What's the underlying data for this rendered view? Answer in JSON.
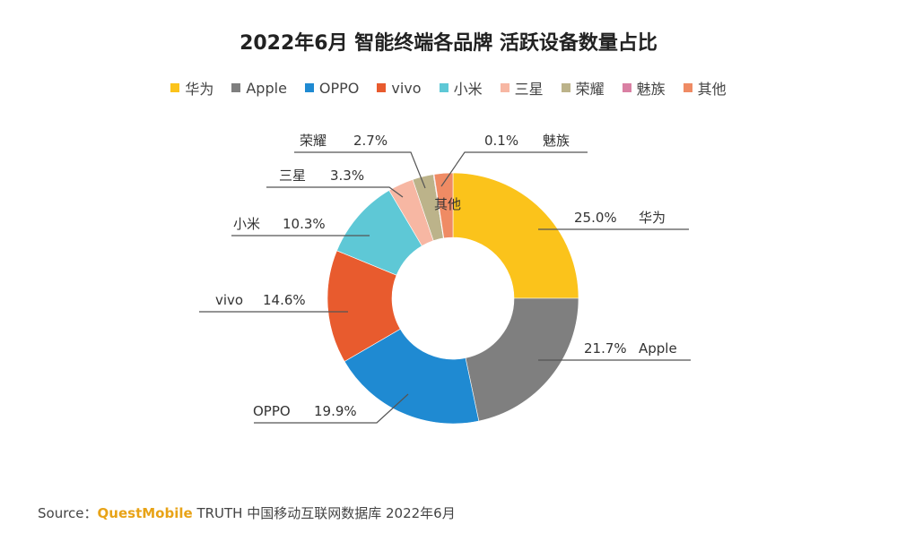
{
  "chart_data": {
    "type": "pie",
    "title": "2022年6月 智能终端各品牌 活跃设备数量占比",
    "unit": "%",
    "legend_position": "top",
    "center_hole": true,
    "series": [
      {
        "name": "华为",
        "value": 25.0,
        "label": "25.0%",
        "color": "#fbc31b"
      },
      {
        "name": "Apple",
        "value": 21.7,
        "label": "21.7%",
        "color": "#7f7f7f"
      },
      {
        "name": "OPPO",
        "value": 19.9,
        "label": "19.9%",
        "color": "#1f8ad2"
      },
      {
        "name": "vivo",
        "value": 14.6,
        "label": "14.6%",
        "color": "#e85b2e"
      },
      {
        "name": "小米",
        "value": 10.3,
        "label": "10.3%",
        "color": "#5ec8d6"
      },
      {
        "name": "三星",
        "value": 3.3,
        "label": "3.3%",
        "color": "#f7b7a3"
      },
      {
        "name": "荣耀",
        "value": 2.7,
        "label": "2.7%",
        "color": "#bcb38a"
      },
      {
        "name": "魅族",
        "value": 0.1,
        "label": "0.1%",
        "color": "#d980a3"
      },
      {
        "name": "其他",
        "value": 2.4,
        "label": "",
        "color": "#ef8b64"
      }
    ]
  },
  "source": {
    "prefix": "Source：",
    "brand": "QuestMobile",
    "text": "TRUTH 中国移动互联网数据库 2022年6月"
  }
}
